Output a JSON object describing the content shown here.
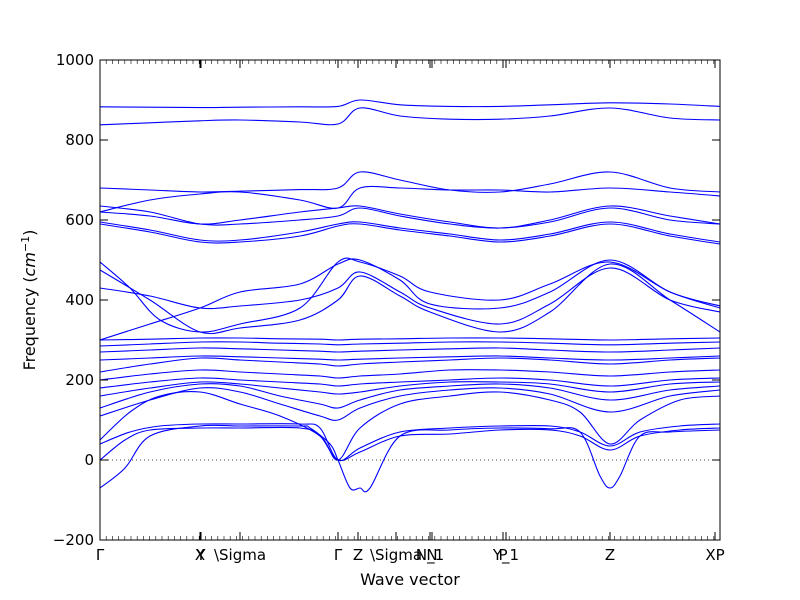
{
  "chart_data": {
    "type": "line",
    "title": "",
    "xlabel": "Wave vector",
    "ylabel_main": "Frequency (",
    "ylabel_unit": "cm",
    "ylabel_exp": "−1",
    "ylabel_close": ")",
    "ylim": [
      -200,
      1000
    ],
    "yticks": [
      -200,
      0,
      200,
      400,
      600,
      800,
      1000
    ],
    "ytick_labels": [
      "−200",
      "0",
      "200",
      "400",
      "600",
      "800",
      "1000"
    ],
    "xlim": [
      0,
      6.2
    ],
    "high_symmetry_points": [
      {
        "x": 0.0,
        "label": "Γ"
      },
      {
        "x": 1.0,
        "label": "X"
      },
      {
        "x": 1.01,
        "label": "Y"
      },
      {
        "x": 1.4,
        "label": "\\Sigma"
      },
      {
        "x": 2.38,
        "label": "Γ"
      },
      {
        "x": 2.58,
        "label": "Z"
      },
      {
        "x": 2.96,
        "label": "\\Sigma"
      },
      {
        "x": 3.3,
        "label": "N_1"
      },
      {
        "x": 3.32,
        "label": "N"
      },
      {
        "x": 4.03,
        "label": "P"
      },
      {
        "x": 4.06,
        "label": "Y_1"
      },
      {
        "x": 5.1,
        "label": "Z"
      },
      {
        "x": 6.15,
        "label": "XP"
      }
    ],
    "zero_line": 0,
    "grid": false,
    "legend": "none",
    "line_color": "#0000ff",
    "series": [
      {
        "x": [
          0,
          0.25,
          0.5,
          1.0,
          1.4,
          2.0,
          2.1,
          2.3,
          2.38,
          2.5,
          2.6,
          2.7,
          3.0,
          3.5,
          4.0,
          4.5,
          4.8,
          5.0,
          5.1,
          5.2,
          5.4,
          5.7,
          6.2
        ],
        "y": [
          -70,
          -20,
          60,
          85,
          85,
          85,
          80,
          40,
          0,
          -70,
          -70,
          -70,
          60,
          75,
          80,
          78,
          70,
          -40,
          -70,
          -40,
          60,
          70,
          75
        ]
      },
      {
        "x": [
          0,
          0.25,
          0.5,
          1.0,
          1.4,
          2.0,
          2.2,
          2.38,
          2.6,
          3.0,
          3.5,
          4.0,
          4.5,
          4.8,
          5.1,
          5.4,
          5.8,
          6.2
        ],
        "y": [
          0,
          50,
          75,
          80,
          80,
          80,
          60,
          0,
          20,
          60,
          65,
          75,
          75,
          60,
          25,
          60,
          75,
          80
        ]
      },
      {
        "x": [
          0,
          0.3,
          0.6,
          1.0,
          1.4,
          2.0,
          2.2,
          2.38,
          2.6,
          3.0,
          3.5,
          4.0,
          4.5,
          4.8,
          5.1,
          5.4,
          5.8,
          6.2
        ],
        "y": [
          40,
          70,
          85,
          90,
          90,
          90,
          80,
          0,
          30,
          70,
          80,
          85,
          85,
          70,
          35,
          70,
          85,
          90
        ]
      },
      {
        "x": [
          0,
          0.3,
          0.6,
          1.0,
          1.4,
          1.8,
          2.2,
          2.38,
          2.6,
          3.0,
          3.5,
          4.0,
          4.5,
          4.8,
          5.1,
          5.4,
          5.8,
          6.2
        ],
        "y": [
          50,
          120,
          160,
          170,
          140,
          110,
          60,
          0,
          80,
          140,
          160,
          170,
          150,
          120,
          40,
          100,
          150,
          160
        ]
      },
      {
        "x": [
          0,
          0.5,
          1.0,
          1.4,
          1.8,
          2.2,
          2.38,
          2.6,
          3.0,
          3.5,
          4.0,
          4.5,
          5.1,
          5.7,
          6.2
        ],
        "y": [
          110,
          150,
          180,
          170,
          140,
          110,
          100,
          130,
          160,
          175,
          180,
          165,
          120,
          160,
          175
        ]
      },
      {
        "x": [
          0,
          0.5,
          1.0,
          1.4,
          1.8,
          2.2,
          2.38,
          2.6,
          3.0,
          3.5,
          4.0,
          4.5,
          5.1,
          5.7,
          6.2
        ],
        "y": [
          130,
          170,
          190,
          185,
          160,
          140,
          130,
          150,
          175,
          185,
          190,
          180,
          150,
          175,
          185
        ]
      },
      {
        "x": [
          0,
          0.5,
          1.0,
          1.4,
          1.8,
          2.2,
          2.38,
          2.6,
          3.0,
          3.5,
          4.0,
          4.5,
          5.1,
          5.7,
          6.2
        ],
        "y": [
          160,
          180,
          195,
          190,
          180,
          170,
          165,
          170,
          185,
          195,
          195,
          190,
          170,
          190,
          195
        ]
      },
      {
        "x": [
          0,
          0.5,
          1.0,
          1.4,
          1.8,
          2.2,
          2.38,
          2.6,
          3.0,
          3.5,
          4.0,
          4.5,
          5.1,
          5.7,
          6.2
        ],
        "y": [
          180,
          195,
          205,
          200,
          195,
          190,
          185,
          190,
          195,
          200,
          205,
          200,
          185,
          200,
          205
        ]
      },
      {
        "x": [
          0,
          0.5,
          1.0,
          1.4,
          1.8,
          2.2,
          2.38,
          2.6,
          3.0,
          3.5,
          4.0,
          4.5,
          5.1,
          5.7,
          6.2
        ],
        "y": [
          200,
          215,
          225,
          220,
          215,
          210,
          205,
          210,
          215,
          225,
          225,
          220,
          210,
          220,
          225
        ]
      },
      {
        "x": [
          0,
          0.5,
          1.0,
          1.4,
          1.8,
          2.2,
          2.38,
          2.6,
          3.0,
          3.5,
          4.0,
          4.5,
          5.1,
          5.7,
          6.2
        ],
        "y": [
          220,
          240,
          255,
          250,
          245,
          240,
          235,
          240,
          245,
          250,
          255,
          250,
          240,
          250,
          255
        ]
      },
      {
        "x": [
          0,
          0.5,
          1.0,
          1.4,
          1.8,
          2.2,
          2.38,
          2.6,
          3.0,
          3.5,
          4.0,
          4.5,
          5.1,
          5.7,
          6.2
        ],
        "y": [
          250,
          255,
          260,
          258,
          255,
          252,
          250,
          252,
          255,
          258,
          260,
          255,
          250,
          255,
          260
        ]
      },
      {
        "x": [
          0,
          0.5,
          1.0,
          1.4,
          1.8,
          2.2,
          2.38,
          2.6,
          3.0,
          3.5,
          4.0,
          4.5,
          5.1,
          5.7,
          6.2
        ],
        "y": [
          270,
          275,
          280,
          278,
          275,
          272,
          270,
          272,
          275,
          278,
          280,
          275,
          270,
          275,
          280
        ]
      },
      {
        "x": [
          0,
          0.5,
          1.0,
          1.4,
          1.8,
          2.2,
          2.38,
          2.6,
          3.0,
          3.5,
          4.0,
          4.5,
          5.1,
          5.7,
          6.2
        ],
        "y": [
          285,
          290,
          295,
          295,
          292,
          290,
          288,
          290,
          292,
          295,
          295,
          292,
          288,
          292,
          295
        ]
      },
      {
        "x": [
          0,
          0.5,
          1.0,
          1.4,
          1.8,
          2.2,
          2.38,
          2.6,
          3.0,
          3.5,
          4.0,
          4.5,
          5.1,
          5.7,
          6.2
        ],
        "y": [
          300,
          302,
          305,
          305,
          303,
          302,
          300,
          302,
          303,
          305,
          305,
          303,
          300,
          303,
          305
        ]
      },
      {
        "x": [
          0,
          0.5,
          1.0,
          1.4,
          2.0,
          2.38,
          2.6,
          3.0,
          3.3,
          4.0,
          4.5,
          5.1,
          5.7,
          6.2
        ],
        "y": [
          300,
          340,
          380,
          420,
          440,
          490,
          500,
          450,
          390,
          380,
          420,
          500,
          420,
          385
        ]
      },
      {
        "x": [
          0,
          0.5,
          1.0,
          1.4,
          2.0,
          2.38,
          2.6,
          3.0,
          3.3,
          4.0,
          4.5,
          5.1,
          5.7,
          6.2
        ],
        "y": [
          430,
          410,
          380,
          385,
          400,
          430,
          470,
          420,
          380,
          340,
          390,
          480,
          400,
          370
        ]
      },
      {
        "x": [
          0,
          0.5,
          1.0,
          1.4,
          2.0,
          2.38,
          2.6,
          3.0,
          3.3,
          4.0,
          4.5,
          5.1,
          5.7,
          6.2
        ],
        "y": [
          475,
          400,
          320,
          330,
          350,
          400,
          460,
          410,
          370,
          320,
          370,
          490,
          400,
          320
        ]
      },
      {
        "x": [
          0,
          0.3,
          0.6,
          1.0,
          1.4,
          2.0,
          2.38,
          2.6,
          3.0,
          3.3,
          4.0,
          4.5,
          5.1,
          5.7,
          6.2
        ],
        "y": [
          495,
          430,
          350,
          320,
          340,
          380,
          495,
          495,
          460,
          420,
          400,
          440,
          495,
          420,
          380
        ]
      },
      {
        "x": [
          0,
          0.5,
          1.0,
          1.4,
          2.0,
          2.38,
          2.6,
          3.0,
          3.5,
          4.0,
          4.5,
          5.1,
          5.7,
          6.2
        ],
        "y": [
          590,
          570,
          545,
          545,
          560,
          585,
          590,
          575,
          560,
          545,
          560,
          590,
          560,
          540
        ]
      },
      {
        "x": [
          0,
          0.5,
          1.0,
          1.4,
          2.0,
          2.38,
          2.6,
          3.0,
          3.5,
          4.0,
          4.5,
          5.1,
          5.7,
          6.2
        ],
        "y": [
          595,
          575,
          550,
          550,
          570,
          590,
          595,
          580,
          565,
          550,
          565,
          595,
          565,
          545
        ]
      },
      {
        "x": [
          0,
          0.5,
          1.0,
          1.4,
          2.0,
          2.38,
          2.6,
          3.0,
          3.5,
          4.0,
          4.5,
          5.1,
          5.7,
          6.2
        ],
        "y": [
          620,
          610,
          590,
          600,
          620,
          630,
          635,
          615,
          595,
          580,
          600,
          635,
          610,
          590
        ]
      },
      {
        "x": [
          0,
          0.5,
          1.0,
          1.4,
          2.0,
          2.38,
          2.6,
          3.0,
          3.5,
          4.0,
          4.5,
          5.1,
          5.7,
          6.2
        ],
        "y": [
          635,
          620,
          590,
          590,
          600,
          610,
          630,
          610,
          590,
          580,
          595,
          630,
          600,
          590
        ]
      },
      {
        "x": [
          0,
          0.5,
          1.0,
          1.4,
          2.0,
          2.38,
          2.6,
          3.0,
          3.5,
          4.0,
          4.5,
          5.1,
          5.7,
          6.2
        ],
        "y": [
          680,
          675,
          670,
          672,
          676,
          680,
          720,
          700,
          675,
          670,
          690,
          720,
          680,
          670
        ]
      },
      {
        "x": [
          0,
          0.5,
          1.0,
          1.4,
          2.0,
          2.38,
          2.6,
          3.0,
          3.5,
          4.0,
          4.5,
          5.1,
          5.7,
          6.2
        ],
        "y": [
          620,
          650,
          665,
          670,
          650,
          630,
          680,
          680,
          675,
          675,
          670,
          680,
          670,
          660
        ]
      },
      {
        "x": [
          0,
          0.5,
          1.0,
          1.4,
          2.0,
          2.38,
          2.6,
          3.0,
          3.5,
          4.0,
          4.5,
          5.1,
          5.7,
          6.2
        ],
        "y": [
          838,
          843,
          848,
          850,
          845,
          840,
          880,
          860,
          852,
          852,
          860,
          880,
          855,
          850
        ]
      },
      {
        "x": [
          0,
          0.5,
          1.0,
          1.4,
          2.0,
          2.38,
          2.6,
          3.0,
          3.5,
          4.0,
          4.5,
          5.1,
          5.7,
          6.2
        ],
        "y": [
          883,
          882,
          881,
          882,
          883,
          884,
          900,
          888,
          884,
          884,
          888,
          893,
          890,
          884
        ]
      }
    ]
  }
}
